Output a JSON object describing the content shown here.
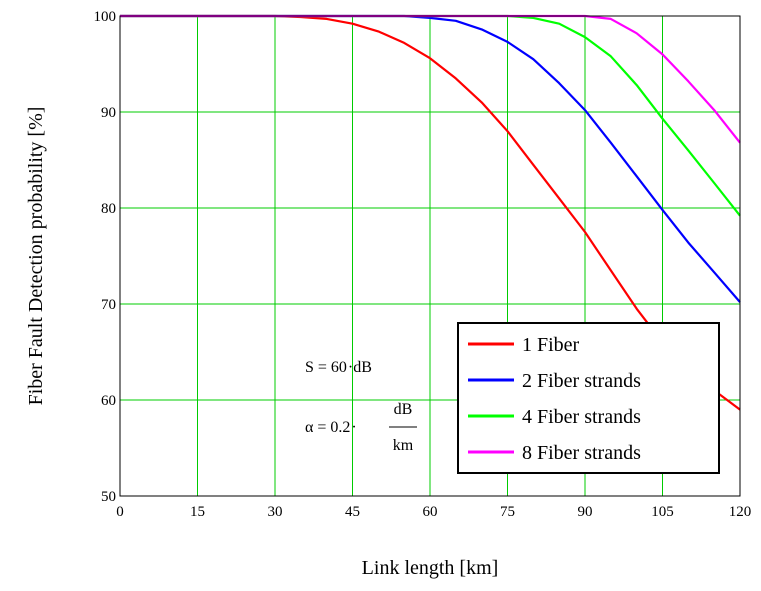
{
  "chart_data": {
    "type": "line",
    "title": "",
    "xlabel": "Link length [km]",
    "ylabel": "Fiber Fault Detection probability [%]",
    "xlim": [
      0,
      120
    ],
    "ylim": [
      50,
      100
    ],
    "xticks": [
      0,
      15,
      30,
      45,
      60,
      75,
      90,
      105,
      120
    ],
    "yticks": [
      50,
      60,
      70,
      80,
      90,
      100
    ],
    "grid": true,
    "grid_color": "#00cc00",
    "legend_position": "bottom-right",
    "x": [
      0,
      10,
      20,
      25,
      30,
      35,
      40,
      45,
      50,
      55,
      60,
      65,
      70,
      75,
      80,
      85,
      90,
      95,
      100,
      105,
      110,
      115,
      120
    ],
    "series": [
      {
        "name": "1 Fiber",
        "color": "#ff0000",
        "values": [
          100,
          100,
          100,
          100,
          100,
          99.9,
          99.7,
          99.2,
          98.4,
          97.2,
          95.6,
          93.5,
          91.0,
          88.0,
          84.5,
          81.0,
          77.5,
          73.5,
          69.5,
          66.0,
          63.5,
          61.0,
          59.0
        ]
      },
      {
        "name": "2 Fiber strands",
        "color": "#0000ff",
        "values": [
          100,
          100,
          100,
          100,
          100,
          100,
          100,
          100,
          100,
          100,
          99.8,
          99.5,
          98.6,
          97.3,
          95.5,
          93.0,
          90.2,
          86.8,
          83.3,
          79.8,
          76.4,
          73.3,
          70.2
        ]
      },
      {
        "name": "4 Fiber strands",
        "color": "#00ff00",
        "values": [
          100,
          100,
          100,
          100,
          100,
          100,
          100,
          100,
          100,
          100,
          100,
          100,
          100,
          100,
          99.8,
          99.2,
          97.8,
          95.8,
          92.8,
          89.3,
          86.0,
          82.6,
          79.2
        ]
      },
      {
        "name": "8 Fiber strands",
        "color": "#ff00ff",
        "values": [
          100,
          100,
          100,
          100,
          100,
          100,
          100,
          100,
          100,
          100,
          100,
          100,
          100,
          100,
          100,
          100,
          100,
          99.7,
          98.2,
          96.0,
          93.2,
          90.2,
          86.8
        ]
      }
    ],
    "annotations": {
      "s_prefix": "S = 60",
      "s_unit": "dB",
      "alpha_prefix": "α = 0.2",
      "alpha_num": "dB",
      "alpha_den": "km"
    }
  }
}
